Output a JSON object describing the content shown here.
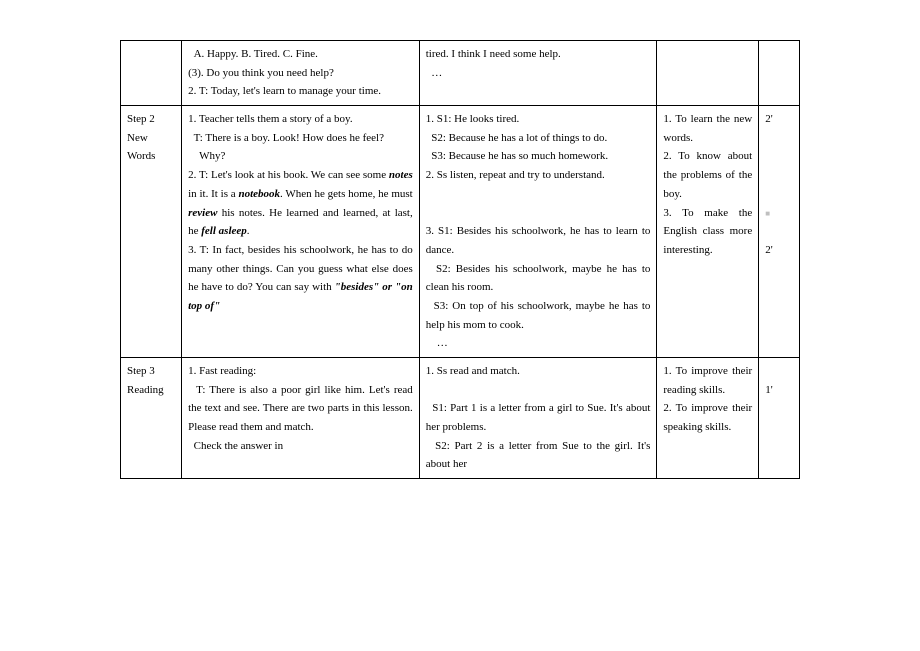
{
  "row1": {
    "step": "",
    "teacher": {
      "l1": "  A. Happy. B. Tired. C. Fine.",
      "l2": "(3). Do you think you need help?",
      "l3": "2. T: Today, let's learn to manage your time."
    },
    "student": {
      "l1": "tired. I think I need some help.",
      "l2": "  …"
    },
    "purpose": "",
    "time": ""
  },
  "row2": {
    "step_l1": "Step 2",
    "step_l2": "New Words",
    "teacher": {
      "t1": "1. Teacher tells them a story of a boy.",
      "t2": "  T: There is a boy. Look! How does he feel?",
      "t3": "    Why?",
      "t4a": "2. T: Let's look at his book. We can see some ",
      "t4b": "notes",
      "t4c": " in it. It is a ",
      "t4d": "notebook",
      "t4e": ". When he gets home, he must ",
      "t4f": "review",
      "t4g": " his notes. He learned and learned, at last, he ",
      "t4h": "fell asleep",
      "t4i": ".",
      "t5a": "3. T: In fact, besides his schoolwork, he has to do many other things. Can you guess what else does he have to do? You can say with ",
      "t5b": "\"besides\" or \"on top of\""
    },
    "student": {
      "s1": "1. S1: He looks tired.",
      "s2": "  S2: Because he has a lot of things to do.",
      "s3": "  S3: Because he has so much homework.",
      "s4": "2. Ss listen, repeat and try to understand.",
      "s5": "3. S1: Besides his schoolwork, he has to learn to dance.",
      "s6": "  S2: Besides his schoolwork, maybe he has to clean his room.",
      "s7": "  S3: On top of his schoolwork, maybe he has to help his mom to cook.",
      "s8": "    …"
    },
    "purpose": {
      "p1": "1. To learn the new words.",
      "p2": "2. To know about the problems of the boy.",
      "p3": "3. To make the English class more interesting."
    },
    "time": {
      "t1": "2'",
      "t2": "2'"
    }
  },
  "row3": {
    "step_l1": "Step 3",
    "step_l2": "Reading",
    "teacher": {
      "t1": "1. Fast reading:",
      "t2": "  T: There is also a poor girl like him. Let's read the text and see. There are two parts in this lesson. Please read them and match.",
      "t3": "  Check the answer in"
    },
    "student": {
      "s1": "1. Ss read and match.",
      "s2": "  S1: Part 1 is a letter from a girl to Sue. It's about her problems.",
      "s3": "  S2: Part 2 is a letter from Sue to the girl. It's about her"
    },
    "purpose": {
      "p1": "1. To improve their reading skills.",
      "p2": "2. To improve their speaking skills."
    },
    "time": {
      "t1": "1'"
    }
  }
}
